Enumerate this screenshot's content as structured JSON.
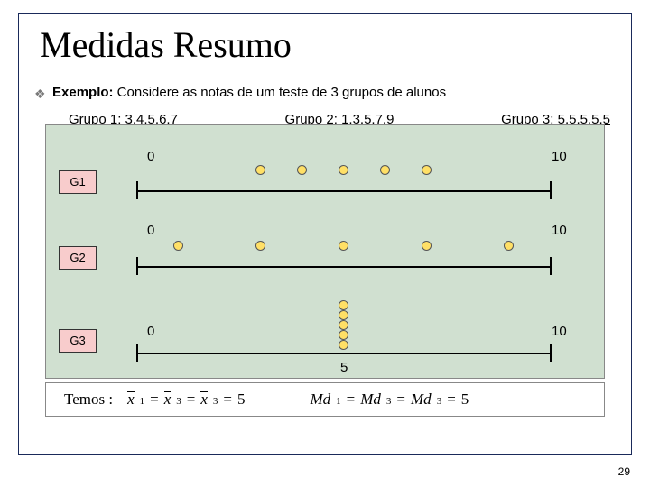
{
  "title": "Medidas Resumo",
  "bullet_glyph": "❖",
  "example_label": "Exemplo:",
  "example_text": " Considere as notas de um teste de 3 grupos de alunos",
  "groups": {
    "g1": "Grupo 1:  3,4,5,6,7",
    "g2": "Grupo 2: 1,3,5,7,9",
    "g3": "Grupo 3: 5,5,5,5,5"
  },
  "chart": {
    "background": "#d0e0d0",
    "dot_fill": "#ffe066",
    "dot_stroke": "#555555",
    "label_fill": "#f8cccc",
    "axis_color": "#000000",
    "labels": {
      "g1": "G1",
      "g2": "G2",
      "g3": "G3"
    },
    "axis_min": 0,
    "axis_max": 10,
    "min_label": "0",
    "max_label": "10",
    "mid_label": "5",
    "g1_values": [
      3,
      4,
      5,
      6,
      7
    ],
    "g2_values": [
      1,
      3,
      5,
      7,
      9
    ],
    "g3_values": [
      5,
      5,
      5,
      5,
      5
    ]
  },
  "formula": {
    "prefix": "Temos :",
    "eq1": {
      "x1": "x",
      "s1": "1",
      "x2": "x",
      "s2": "3",
      "x3": "x",
      "s3": "3",
      "val": "5"
    },
    "eq2": {
      "m": "Md",
      "s1": "1",
      "s2": "3",
      "s3": "3",
      "val": "5"
    }
  },
  "page_number": "29",
  "colors": {
    "border": "#1a2a5a",
    "bullet": "#7a7a7a"
  }
}
